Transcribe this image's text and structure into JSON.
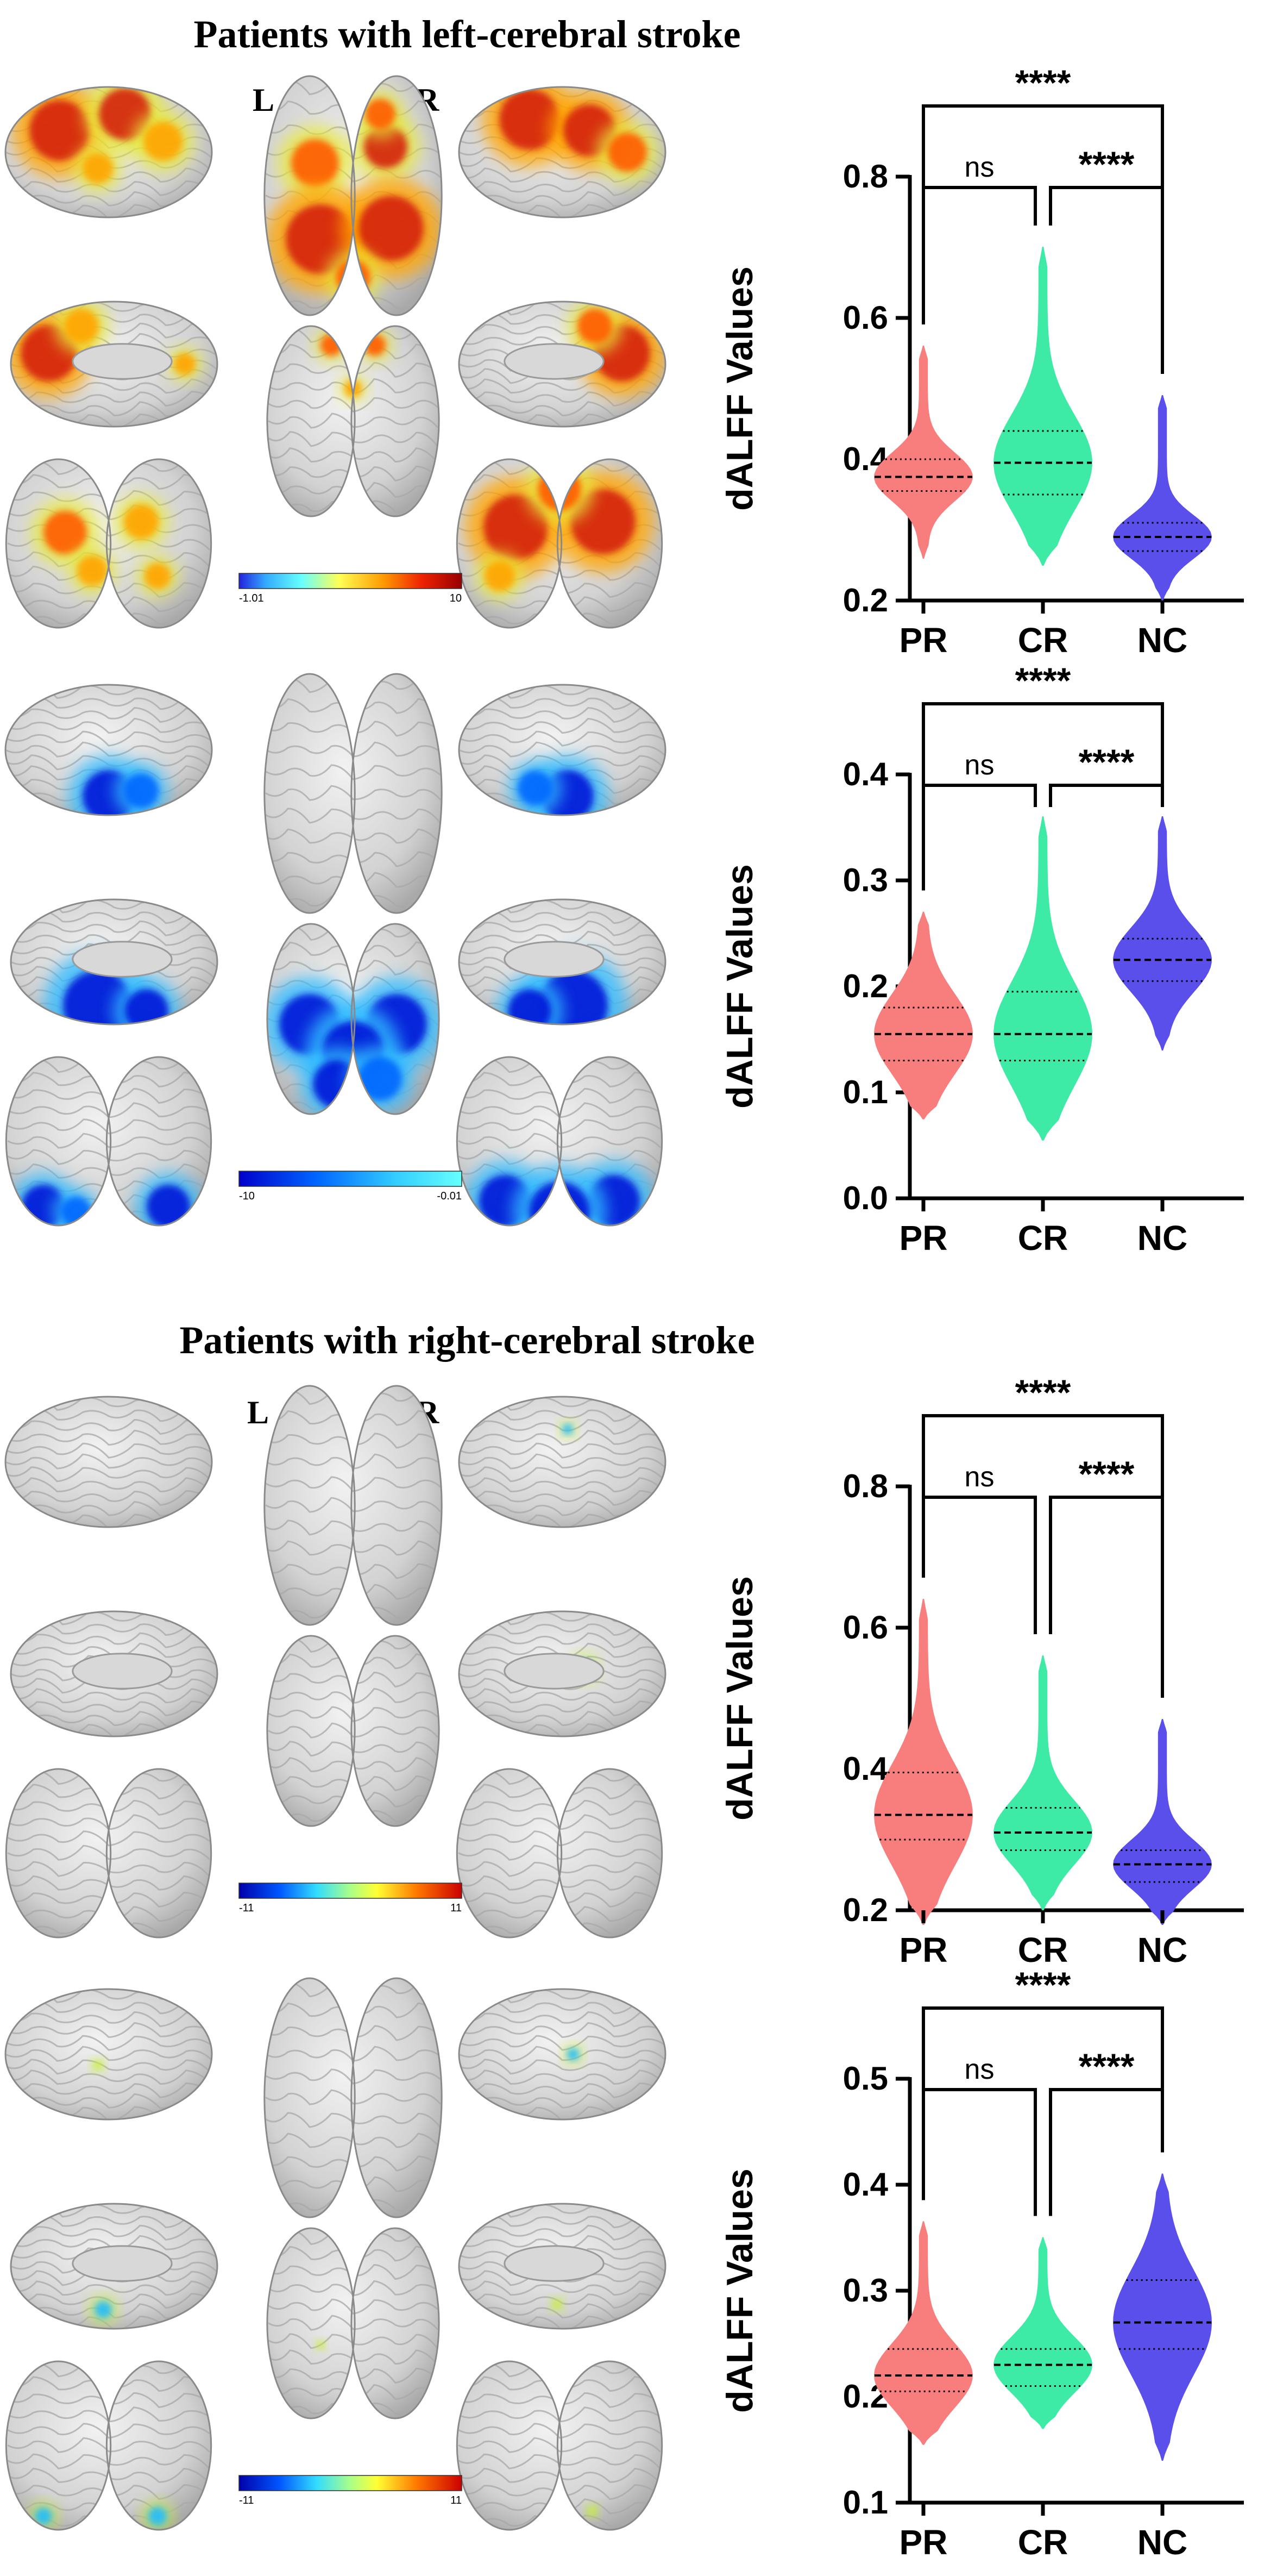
{
  "headings": {
    "left": "Patients with left-cerebral stroke",
    "right": "Patients with right-cerebral stroke"
  },
  "hemisphere_labels": {
    "left": "L",
    "right": "R"
  },
  "panels": [
    {
      "id": "p1",
      "colorbar": {
        "min": "-1.01",
        "max": "10",
        "scheme": "positive"
      }
    },
    {
      "id": "p2",
      "colorbar": {
        "min": "-10",
        "max": "-0.01",
        "scheme": "negative"
      }
    },
    {
      "id": "p3",
      "colorbar": {
        "min": "-11",
        "max": "11",
        "scheme": "full"
      }
    },
    {
      "id": "p4",
      "colorbar": {
        "min": "-11",
        "max": "11",
        "scheme": "full"
      }
    }
  ],
  "colors": {
    "PR": "#F87E7E",
    "CR": "#3EEBA6",
    "NC": "#5A4FEB"
  },
  "chart_data": [
    {
      "type": "violin",
      "ylabel": "dALFF Values",
      "categories": [
        "PR",
        "CR",
        "NC"
      ],
      "ylim": [
        0.2,
        0.8
      ],
      "yticks": [
        0.2,
        0.4,
        0.6,
        0.8
      ],
      "ytick_labels": [
        "0.2",
        "0.4",
        "0.6",
        "0.8"
      ],
      "series": [
        {
          "category": "PR",
          "min": 0.26,
          "max": 0.56,
          "median": 0.375,
          "q1": 0.355,
          "q3": 0.4
        },
        {
          "category": "CR",
          "min": 0.25,
          "max": 0.7,
          "median": 0.395,
          "q1": 0.35,
          "q3": 0.44
        },
        {
          "category": "NC",
          "min": 0.2,
          "max": 0.49,
          "median": 0.29,
          "q1": 0.27,
          "q3": 0.31
        }
      ],
      "comparisons": [
        {
          "from": "PR",
          "to": "NC",
          "label": "****"
        },
        {
          "from": "PR",
          "to": "CR",
          "label": "ns"
        },
        {
          "from": "CR",
          "to": "NC",
          "label": "****"
        }
      ]
    },
    {
      "type": "violin",
      "ylabel": "dALFF Values",
      "categories": [
        "PR",
        "CR",
        "NC"
      ],
      "ylim": [
        0.0,
        0.4
      ],
      "yticks": [
        0.0,
        0.1,
        0.2,
        0.3,
        0.4
      ],
      "ytick_labels": [
        "0.0",
        "0.1",
        "0.2",
        "0.3",
        "0.4"
      ],
      "series": [
        {
          "category": "PR",
          "min": 0.075,
          "max": 0.27,
          "median": 0.155,
          "q1": 0.13,
          "q3": 0.18
        },
        {
          "category": "CR",
          "min": 0.055,
          "max": 0.36,
          "median": 0.155,
          "q1": 0.13,
          "q3": 0.195
        },
        {
          "category": "NC",
          "min": 0.14,
          "max": 0.36,
          "median": 0.225,
          "q1": 0.205,
          "q3": 0.245
        }
      ],
      "comparisons": [
        {
          "from": "PR",
          "to": "NC",
          "label": "****"
        },
        {
          "from": "PR",
          "to": "CR",
          "label": "ns"
        },
        {
          "from": "CR",
          "to": "NC",
          "label": "****"
        }
      ]
    },
    {
      "type": "violin",
      "ylabel": "dALFF Values",
      "categories": [
        "PR",
        "CR",
        "NC"
      ],
      "ylim": [
        0.2,
        0.8
      ],
      "yticks": [
        0.2,
        0.4,
        0.6,
        0.8
      ],
      "ytick_labels": [
        "0.2",
        "0.4",
        "0.6",
        "0.8"
      ],
      "series": [
        {
          "category": "PR",
          "min": 0.18,
          "max": 0.64,
          "median": 0.335,
          "q1": 0.3,
          "q3": 0.395
        },
        {
          "category": "CR",
          "min": 0.2,
          "max": 0.56,
          "median": 0.31,
          "q1": 0.285,
          "q3": 0.345
        },
        {
          "category": "NC",
          "min": 0.18,
          "max": 0.47,
          "median": 0.265,
          "q1": 0.24,
          "q3": 0.285
        }
      ],
      "comparisons": [
        {
          "from": "PR",
          "to": "NC",
          "label": "****"
        },
        {
          "from": "PR",
          "to": "CR",
          "label": "ns"
        },
        {
          "from": "CR",
          "to": "NC",
          "label": "****"
        }
      ]
    },
    {
      "type": "violin",
      "ylabel": "dALFF Values",
      "categories": [
        "PR",
        "CR",
        "NC"
      ],
      "ylim": [
        0.1,
        0.5
      ],
      "yticks": [
        0.1,
        0.2,
        0.3,
        0.4,
        0.5
      ],
      "ytick_labels": [
        "0.1",
        "0.2",
        "0.3",
        "0.4",
        "0.5"
      ],
      "series": [
        {
          "category": "PR",
          "min": 0.155,
          "max": 0.365,
          "median": 0.22,
          "q1": 0.205,
          "q3": 0.245
        },
        {
          "category": "CR",
          "min": 0.17,
          "max": 0.35,
          "median": 0.23,
          "q1": 0.21,
          "q3": 0.245
        },
        {
          "category": "NC",
          "min": 0.14,
          "max": 0.41,
          "median": 0.27,
          "q1": 0.245,
          "q3": 0.31
        }
      ],
      "comparisons": [
        {
          "from": "PR",
          "to": "NC",
          "label": "****"
        },
        {
          "from": "PR",
          "to": "CR",
          "label": "ns"
        },
        {
          "from": "CR",
          "to": "NC",
          "label": "****"
        }
      ]
    }
  ]
}
